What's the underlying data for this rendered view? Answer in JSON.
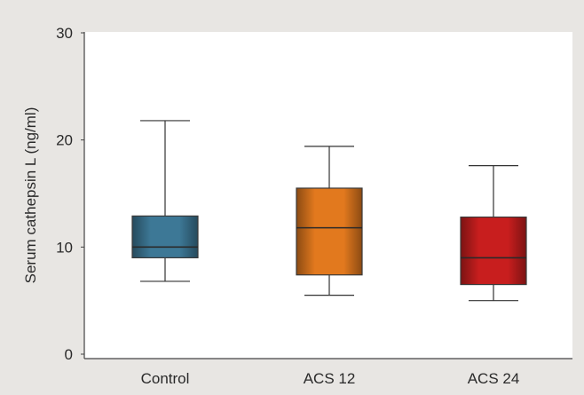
{
  "chart_data": {
    "type": "box",
    "ylabel": "Serum cathepsin L (ng/ml)",
    "xlabel": "",
    "ylim": [
      0,
      30
    ],
    "yticks": [
      "0",
      "10",
      "20",
      "30"
    ],
    "grid": false,
    "categories": [
      "Control",
      "ACS 12",
      "ACS 24"
    ],
    "boxes": [
      {
        "category": "Control",
        "min": 6.8,
        "q1": 9.0,
        "median": 10.0,
        "q3": 12.9,
        "max": 21.8,
        "color": "#3d7896"
      },
      {
        "category": "ACS 12",
        "min": 5.5,
        "q1": 7.4,
        "median": 11.8,
        "q3": 15.5,
        "max": 19.4,
        "color": "#e2791e"
      },
      {
        "category": "ACS 24",
        "min": 5.0,
        "q1": 6.5,
        "median": 9.0,
        "q3": 12.8,
        "max": 17.6,
        "color": "#c81e1e"
      }
    ]
  }
}
